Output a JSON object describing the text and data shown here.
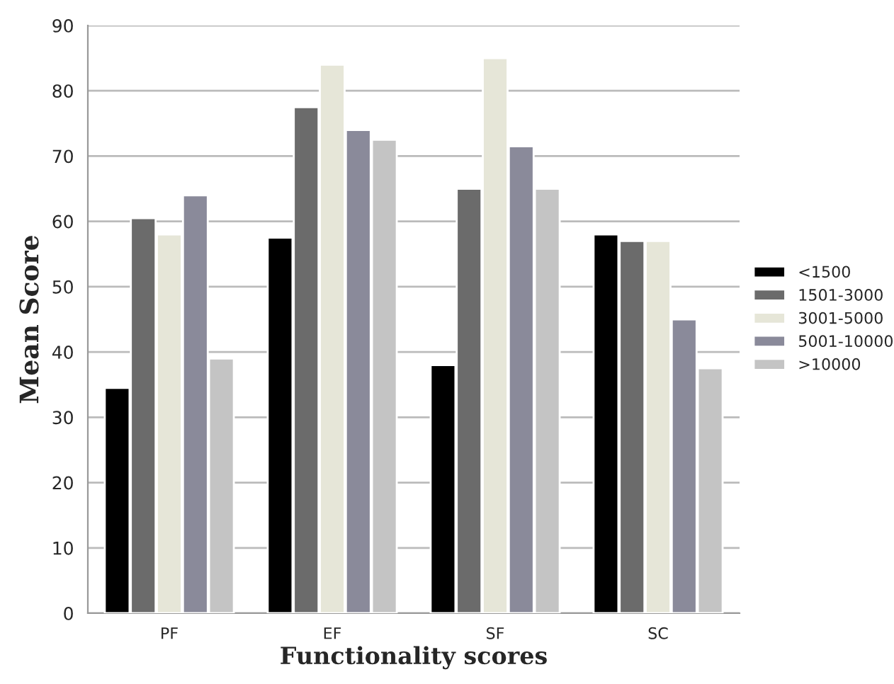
{
  "chart_data": {
    "type": "bar",
    "xlabel": "Functionality scores",
    "ylabel": "Mean Score",
    "categories": [
      "PF",
      "EF",
      "SF",
      "SC"
    ],
    "series": [
      {
        "name": "<1500",
        "color": "#000000",
        "values": [
          34.5,
          57.5,
          38,
          58
        ]
      },
      {
        "name": "1501-3000",
        "color": "#6b6b6b",
        "values": [
          60.5,
          77.5,
          65,
          57
        ]
      },
      {
        "name": "3001-5000",
        "color": "#e6e6d8",
        "values": [
          58,
          84,
          85,
          57
        ]
      },
      {
        "name": "5001-10000",
        "color": "#8a8a9a",
        "values": [
          64,
          74,
          71.5,
          45
        ]
      },
      {
        "name": ">10000",
        "color": "#c4c4c4",
        "values": [
          39,
          72.5,
          65,
          37.5
        ]
      }
    ],
    "ylim": [
      0,
      90
    ],
    "yticks": [
      0,
      10,
      20,
      30,
      40,
      50,
      60,
      70,
      80,
      90
    ],
    "grid": "y",
    "legend": "right"
  }
}
